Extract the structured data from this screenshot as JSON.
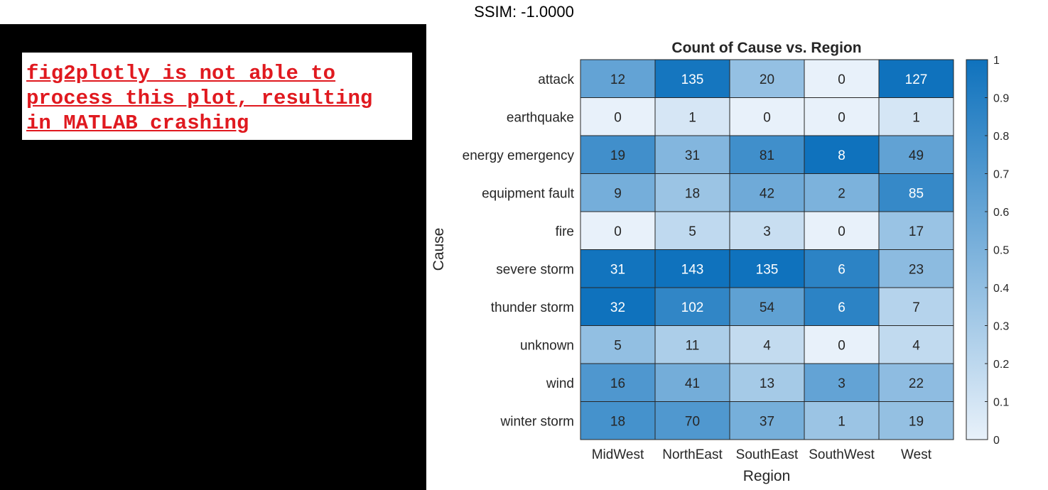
{
  "header": {
    "ssim": "SSIM: -1.0000"
  },
  "notice": {
    "lines": [
      "fig2plotly is not able to",
      "process this plot, resulting",
      "in MATLAB crashing"
    ]
  },
  "chart_data": {
    "type": "heatmap",
    "title": "Count of Cause vs. Region",
    "xlabel": "Region",
    "ylabel": "Cause",
    "x": [
      "MidWest",
      "NorthEast",
      "SouthEast",
      "SouthWest",
      "West"
    ],
    "y": [
      "attack",
      "earthquake",
      "energy emergency",
      "equipment fault",
      "fire",
      "severe storm",
      "thunder storm",
      "unknown",
      "wind",
      "winter storm"
    ],
    "values": [
      [
        12,
        135,
        20,
        0,
        127
      ],
      [
        0,
        1,
        0,
        0,
        1
      ],
      [
        19,
        31,
        81,
        8,
        49
      ],
      [
        9,
        18,
        42,
        2,
        85
      ],
      [
        0,
        5,
        3,
        0,
        17
      ],
      [
        31,
        143,
        135,
        6,
        23
      ],
      [
        32,
        102,
        54,
        6,
        7
      ],
      [
        5,
        11,
        4,
        0,
        4
      ],
      [
        16,
        41,
        13,
        3,
        22
      ],
      [
        18,
        70,
        37,
        1,
        19
      ]
    ],
    "color_normalization": "column",
    "colorbar": {
      "range": [
        0,
        1
      ],
      "ticks": [
        0,
        0.1,
        0.2,
        0.3,
        0.4,
        0.5,
        0.6,
        0.7,
        0.8,
        0.9,
        1
      ],
      "tick_labels": [
        "0",
        "0.1",
        "0.2",
        "0.3",
        "0.4",
        "0.5",
        "0.6",
        "0.7",
        "0.8",
        "0.9",
        "1"
      ]
    },
    "colors": {
      "low": "#e8f1fa",
      "high": "#0f72bd",
      "text_dark": "#262626",
      "text_light": "#ffffff"
    }
  }
}
